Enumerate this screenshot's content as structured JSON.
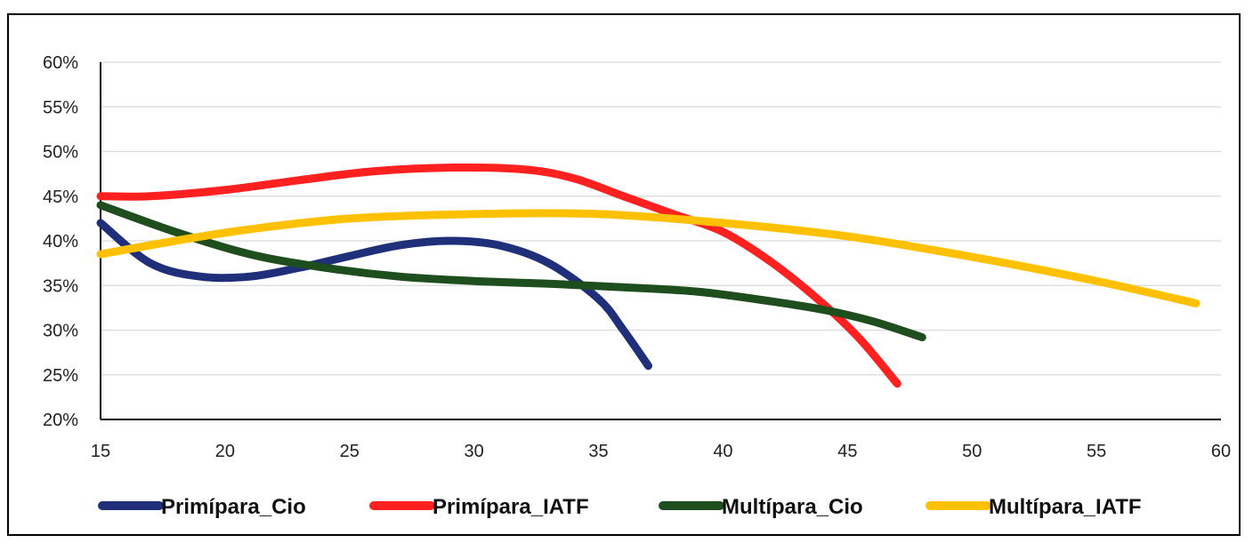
{
  "chart_data": {
    "type": "line",
    "title": "",
    "xlabel": "",
    "ylabel": "",
    "xlim": [
      15,
      60
    ],
    "ylim": [
      20,
      60
    ],
    "x_ticks": [
      15,
      20,
      25,
      30,
      35,
      40,
      45,
      50,
      55,
      60
    ],
    "y_ticks": [
      20,
      25,
      30,
      35,
      40,
      45,
      50,
      55,
      60
    ],
    "y_tick_labels": [
      "20%",
      "25%",
      "30%",
      "35%",
      "40%",
      "45%",
      "50%",
      "55%",
      "60%"
    ],
    "x_tick_labels": [
      "15",
      "20",
      "25",
      "30",
      "35",
      "40",
      "45",
      "50",
      "55",
      "60"
    ],
    "grid": "horizontal",
    "legend_position": "bottom",
    "series": [
      {
        "name": "Primípara_Cio",
        "color": "#1f2f7a",
        "points": [
          [
            15,
            42
          ],
          [
            17,
            37.5
          ],
          [
            19,
            36
          ],
          [
            21,
            36
          ],
          [
            23,
            37
          ],
          [
            25,
            38.3
          ],
          [
            27,
            39.5
          ],
          [
            29,
            40
          ],
          [
            31,
            39.5
          ],
          [
            33,
            37.5
          ],
          [
            35,
            33.5
          ],
          [
            36,
            30
          ],
          [
            37,
            26
          ]
        ]
      },
      {
        "name": "Primípara_IATF",
        "color": "#ff2020",
        "points": [
          [
            15,
            45
          ],
          [
            17,
            45
          ],
          [
            20,
            45.7
          ],
          [
            23,
            46.8
          ],
          [
            26,
            47.8
          ],
          [
            29,
            48.2
          ],
          [
            32,
            48
          ],
          [
            34,
            47
          ],
          [
            36,
            45
          ],
          [
            38,
            43
          ],
          [
            40,
            41
          ],
          [
            42,
            37.5
          ],
          [
            44,
            33
          ],
          [
            45.5,
            29
          ],
          [
            47,
            24
          ]
        ]
      },
      {
        "name": "Multípara_Cio",
        "color": "#1e4d1e",
        "points": [
          [
            15,
            44
          ],
          [
            18,
            41
          ],
          [
            21,
            38.5
          ],
          [
            24,
            37
          ],
          [
            27,
            36
          ],
          [
            30,
            35.5
          ],
          [
            33,
            35.2
          ],
          [
            36,
            34.8
          ],
          [
            39,
            34.3
          ],
          [
            42,
            33.2
          ],
          [
            44,
            32.3
          ],
          [
            46,
            31
          ],
          [
            48,
            29.2
          ]
        ]
      },
      {
        "name": "Multípara_IATF",
        "color": "#ffc000",
        "points": [
          [
            15,
            38.5
          ],
          [
            18,
            40
          ],
          [
            21,
            41.3
          ],
          [
            25,
            42.5
          ],
          [
            30,
            43
          ],
          [
            35,
            43
          ],
          [
            40,
            42
          ],
          [
            45,
            40.5
          ],
          [
            50,
            38.2
          ],
          [
            55,
            35.5
          ],
          [
            59,
            33
          ]
        ]
      }
    ]
  }
}
